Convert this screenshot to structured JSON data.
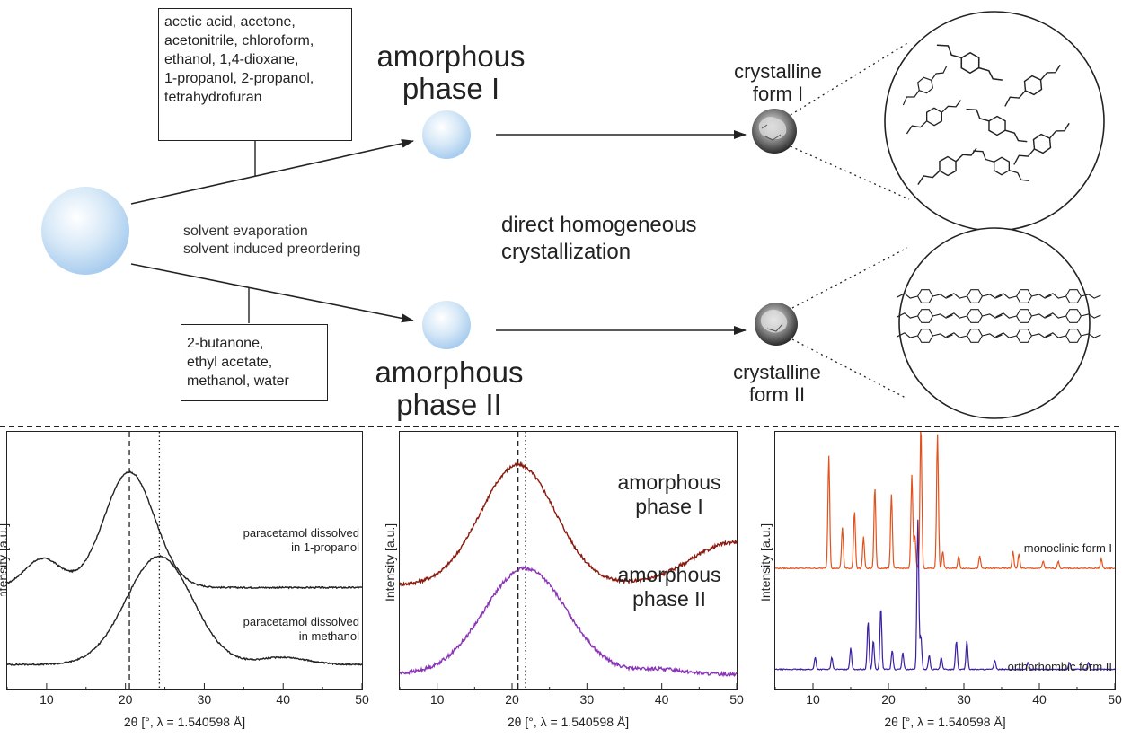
{
  "diagram": {
    "solvent_box_1": [
      "acetic acid, acetone,",
      "acetonitrile, chloroform,",
      "ethanol, 1,4-dioxane,",
      "1-propanol, 2-propanol,",
      "tetrahydrofuran"
    ],
    "solvent_box_2": [
      "2-butanone,",
      "ethyl acetate,",
      "methanol, water"
    ],
    "amorphous_1": [
      "amorphous",
      "phase I"
    ],
    "amorphous_2": [
      "amorphous",
      "phase II"
    ],
    "crystal_1": [
      "crystalline",
      "form I"
    ],
    "crystal_2": [
      "crystalline",
      "form II"
    ],
    "process_label": [
      "solvent evaporation",
      "solvent induced preordering"
    ],
    "direct_label": [
      "direct homogeneous",
      "crystallization"
    ],
    "colors": {
      "sphere": "#bcd9f2",
      "arrow": "#222222"
    }
  },
  "chart_data": [
    {
      "type": "line",
      "xlabel": "2θ [°, λ = 1.540598 Å]",
      "ylabel": "Intensity [a.u.]",
      "xlim": [
        5,
        50
      ],
      "xticks": [
        "10",
        "20",
        "30",
        "40",
        "50"
      ],
      "vlines": [
        {
          "x": 20.5,
          "style": "dashed"
        },
        {
          "x": 24.3,
          "style": "dotted"
        }
      ],
      "series": [
        {
          "name": "paracetamol dissolved in 1-propanol",
          "color": "#222222",
          "peaks": [
            {
              "x": 20.5,
              "h": 0.48,
              "w": 3.2
            },
            {
              "x": 9.5,
              "h": 0.12,
              "w": 2.3
            }
          ],
          "base": 0.42
        },
        {
          "name": "paracetamol dissolved in methanol",
          "color": "#222222",
          "peaks": [
            {
              "x": 24.3,
              "h": 0.45,
              "w": 4.2
            },
            {
              "x": 40,
              "h": 0.03,
              "w": 3
            }
          ],
          "base": 0.1
        }
      ],
      "annotations": [
        [
          "paracetamol dissolved",
          "in 1-propanol"
        ],
        [
          "paracetamol dissolved",
          "in methanol"
        ]
      ]
    },
    {
      "type": "line",
      "xlabel": "2θ [°, λ = 1.540598 Å]",
      "ylabel": "Intensity [a.u.]",
      "xlim": [
        5,
        50
      ],
      "xticks": [
        "10",
        "20",
        "30",
        "40",
        "50"
      ],
      "vlines": [
        {
          "x": 20.8,
          "style": "dashed"
        },
        {
          "x": 21.8,
          "style": "dotted"
        }
      ],
      "series": [
        {
          "name": "amorphous phase I",
          "color": "#8b1a0e",
          "peaks": [
            {
              "x": 20.8,
              "h": 0.5,
              "w": 5
            },
            {
              "x": 50,
              "h": 0.18,
              "w": 6
            }
          ],
          "base": 0.43
        },
        {
          "name": "amorphous phase II",
          "color": "#8a35b8",
          "peaks": [
            {
              "x": 21.8,
              "h": 0.44,
              "w": 5.5
            },
            {
              "x": 40,
              "h": 0.02,
              "w": 3
            }
          ],
          "base": 0.06
        }
      ],
      "annotations": [
        [
          "amorphous",
          "phase I"
        ],
        [
          "amorphous",
          "phase II"
        ]
      ]
    },
    {
      "type": "line",
      "xlabel": "2θ [°, λ = 1.540598 Å]",
      "ylabel": "Intensity [a.u.]",
      "xlim": [
        5,
        50
      ],
      "xticks": [
        "10",
        "20",
        "30",
        "40",
        "50"
      ],
      "vlines": [],
      "series": [
        {
          "name": "monoclinic form I",
          "color": "#e2521d",
          "base": 0.5,
          "sticks": [
            [
              12.1,
              0.47
            ],
            [
              13.9,
              0.17
            ],
            [
              15.5,
              0.24
            ],
            [
              16.7,
              0.13
            ],
            [
              18.2,
              0.34
            ],
            [
              20.4,
              0.31
            ],
            [
              23.1,
              0.39
            ],
            [
              23.5,
              0.14
            ],
            [
              24.3,
              0.6
            ],
            [
              26.5,
              0.56
            ],
            [
              27.2,
              0.07
            ],
            [
              29.3,
              0.05
            ],
            [
              32.1,
              0.05
            ],
            [
              36.5,
              0.07
            ],
            [
              37.3,
              0.06
            ],
            [
              40.5,
              0.03
            ],
            [
              42.5,
              0.03
            ],
            [
              48.2,
              0.04
            ]
          ]
        },
        {
          "name": "orthorhombic form II",
          "color": "#3b1ea3",
          "base": 0.08,
          "sticks": [
            [
              10.3,
              0.05
            ],
            [
              12.5,
              0.05
            ],
            [
              15.0,
              0.09
            ],
            [
              17.3,
              0.2
            ],
            [
              18.0,
              0.12
            ],
            [
              19.0,
              0.26
            ],
            [
              20.5,
              0.08
            ],
            [
              21.9,
              0.07
            ],
            [
              23.9,
              0.62
            ],
            [
              24.3,
              0.14
            ],
            [
              25.4,
              0.06
            ],
            [
              27.0,
              0.05
            ],
            [
              29.0,
              0.12
            ],
            [
              30.4,
              0.12
            ],
            [
              34.1,
              0.04
            ],
            [
              38.5,
              0.03
            ],
            [
              44.0,
              0.03
            ],
            [
              46.5,
              0.03
            ]
          ]
        }
      ],
      "annotations": [
        [
          "monoclinic form I"
        ],
        [
          "orthorhombic form II"
        ]
      ]
    }
  ]
}
